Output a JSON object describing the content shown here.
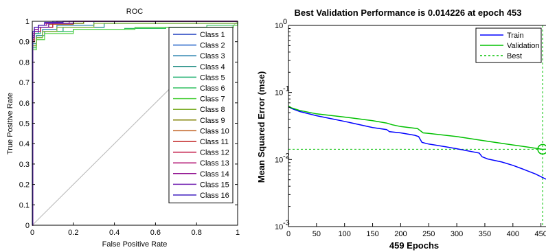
{
  "chart_data": [
    {
      "type": "line",
      "title": "ROC",
      "xlabel": "False Positive Rate",
      "ylabel": "True Positive Rate",
      "xlim": [
        0,
        1
      ],
      "ylim": [
        0,
        1
      ],
      "xticks": [
        "0",
        "0.2",
        "0.4",
        "0.6",
        "0.8",
        "1"
      ],
      "yticks": [
        "0",
        "0.1",
        "0.2",
        "0.3",
        "0.4",
        "0.5",
        "0.6",
        "0.7",
        "0.8",
        "0.9",
        "1"
      ],
      "legend_position": "right",
      "grid": false,
      "diagonal_reference": {
        "x": [
          0,
          1
        ],
        "y": [
          0,
          1
        ],
        "color": "#bfbfbf"
      },
      "series": [
        {
          "name": "Class 1",
          "color": "#1f3fbf",
          "x": [
            0,
            0.002,
            0.01,
            0.03,
            0.06,
            0.1,
            1
          ],
          "y": [
            0,
            0.93,
            0.96,
            0.98,
            0.99,
            1,
            1
          ]
        },
        {
          "name": "Class 2",
          "color": "#1f60c8",
          "x": [
            0,
            0.002,
            0.01,
            0.03,
            0.08,
            0.15,
            1
          ],
          "y": [
            0,
            0.9,
            0.94,
            0.97,
            0.99,
            1,
            1
          ]
        },
        {
          "name": "Class 3",
          "color": "#1a78a8",
          "x": [
            0,
            0.002,
            0.02,
            0.05,
            0.12,
            0.3,
            1
          ],
          "y": [
            0,
            0.88,
            0.93,
            0.96,
            0.98,
            1,
            1
          ]
        },
        {
          "name": "Class 4",
          "color": "#1a8a80",
          "x": [
            0,
            0.002,
            0.02,
            0.06,
            0.15,
            0.35,
            1
          ],
          "y": [
            0,
            0.89,
            0.93,
            0.95,
            0.97,
            0.99,
            1
          ]
        },
        {
          "name": "Class 5",
          "color": "#20b070",
          "x": [
            0,
            0.002,
            0.01,
            0.04,
            0.1,
            0.25,
            1
          ],
          "y": [
            0,
            0.9,
            0.94,
            0.97,
            0.99,
            1,
            1
          ]
        },
        {
          "name": "Class 6",
          "color": "#30c060",
          "x": [
            0,
            0.002,
            0.02,
            0.05,
            0.2,
            0.45,
            0.65,
            0.85,
            1
          ],
          "y": [
            0,
            0.87,
            0.92,
            0.95,
            0.96,
            0.965,
            0.97,
            0.98,
            1
          ]
        },
        {
          "name": "Class 7",
          "color": "#50d040",
          "x": [
            0,
            0.002,
            0.02,
            0.06,
            0.2,
            0.5,
            0.98,
            1
          ],
          "y": [
            0,
            0.86,
            0.91,
            0.94,
            0.96,
            0.97,
            0.98,
            1
          ]
        },
        {
          "name": "Class 8",
          "color": "#80b030",
          "x": [
            0,
            0.002,
            0.02,
            0.05,
            0.12,
            0.3,
            1
          ],
          "y": [
            0,
            0.88,
            0.92,
            0.95,
            0.97,
            0.99,
            1
          ]
        },
        {
          "name": "Class 9",
          "color": "#808000",
          "x": [
            0,
            0.002,
            0.01,
            0.04,
            0.1,
            0.25,
            1
          ],
          "y": [
            0,
            0.92,
            0.95,
            0.97,
            0.99,
            1,
            1
          ]
        },
        {
          "name": "Class 10",
          "color": "#c06020",
          "x": [
            0,
            0.002,
            0.01,
            0.03,
            0.08,
            0.2,
            1
          ],
          "y": [
            0,
            0.91,
            0.95,
            0.97,
            0.985,
            1,
            1
          ]
        },
        {
          "name": "Class 11",
          "color": "#c02020",
          "x": [
            0,
            0.002,
            0.01,
            0.03,
            0.07,
            0.15,
            1
          ],
          "y": [
            0,
            0.92,
            0.96,
            0.98,
            0.99,
            1,
            1
          ]
        },
        {
          "name": "Class 12",
          "color": "#c01040",
          "x": [
            0,
            0.002,
            0.01,
            0.04,
            0.1,
            0.2,
            1
          ],
          "y": [
            0,
            0.9,
            0.95,
            0.97,
            0.99,
            1,
            1
          ]
        },
        {
          "name": "Class 13",
          "color": "#b01070",
          "x": [
            0,
            0.002,
            0.01,
            0.03,
            0.06,
            0.12,
            1
          ],
          "y": [
            0,
            0.94,
            0.97,
            0.98,
            0.99,
            1,
            1
          ]
        },
        {
          "name": "Class 14",
          "color": "#901090",
          "x": [
            0,
            0.002,
            0.01,
            0.03,
            0.07,
            0.18,
            1
          ],
          "y": [
            0,
            0.93,
            0.96,
            0.98,
            0.99,
            1,
            1
          ]
        },
        {
          "name": "Class 15",
          "color": "#7020b0",
          "x": [
            0,
            0.002,
            0.01,
            0.03,
            0.08,
            0.2,
            1
          ],
          "y": [
            0,
            0.92,
            0.95,
            0.97,
            0.99,
            1,
            1
          ]
        },
        {
          "name": "Class 16",
          "color": "#4020c0",
          "x": [
            0,
            0.002,
            0.01,
            0.03,
            0.06,
            0.15,
            1
          ],
          "y": [
            0,
            0.95,
            0.97,
            0.98,
            0.995,
            1,
            1
          ]
        }
      ]
    },
    {
      "type": "line",
      "title": "Best Validation Performance is 0.014226 at epoch 453",
      "xlabel": "459 Epochs",
      "ylabel": "Mean Squared Error  (mse)",
      "xlim": [
        0,
        459
      ],
      "ylim": [
        0.001,
        1
      ],
      "yscale": "log",
      "xticks": [
        "0",
        "50",
        "100",
        "150",
        "200",
        "250",
        "300",
        "350",
        "400",
        "450"
      ],
      "yticks": [
        0.001,
        0.01,
        0.1,
        1
      ],
      "legend_position": "top-right",
      "grid": false,
      "best": {
        "epoch": 453,
        "value": 0.014226,
        "name": "Best",
        "color": "#00c000"
      },
      "series": [
        {
          "name": "Train",
          "color": "#0000ff",
          "x": [
            0,
            5,
            20,
            50,
            80,
            100,
            120,
            150,
            175,
            180,
            200,
            225,
            232,
            238,
            250,
            280,
            300,
            340,
            345,
            355,
            380,
            400,
            420,
            440,
            459
          ],
          "y": [
            0.062,
            0.058,
            0.052,
            0.045,
            0.04,
            0.037,
            0.034,
            0.03,
            0.028,
            0.026,
            0.025,
            0.023,
            0.022,
            0.018,
            0.017,
            0.0155,
            0.0145,
            0.0125,
            0.011,
            0.0102,
            0.0092,
            0.0082,
            0.0071,
            0.0061,
            0.0051
          ]
        },
        {
          "name": "Validation",
          "color": "#00c000",
          "x": [
            0,
            5,
            20,
            50,
            100,
            150,
            175,
            185,
            200,
            230,
            240,
            250,
            300,
            350,
            400,
            430,
            453,
            459
          ],
          "y": [
            0.063,
            0.059,
            0.054,
            0.048,
            0.043,
            0.038,
            0.035,
            0.033,
            0.031,
            0.029,
            0.025,
            0.0245,
            0.022,
            0.019,
            0.0165,
            0.0152,
            0.0142,
            0.0143
          ]
        }
      ]
    }
  ]
}
